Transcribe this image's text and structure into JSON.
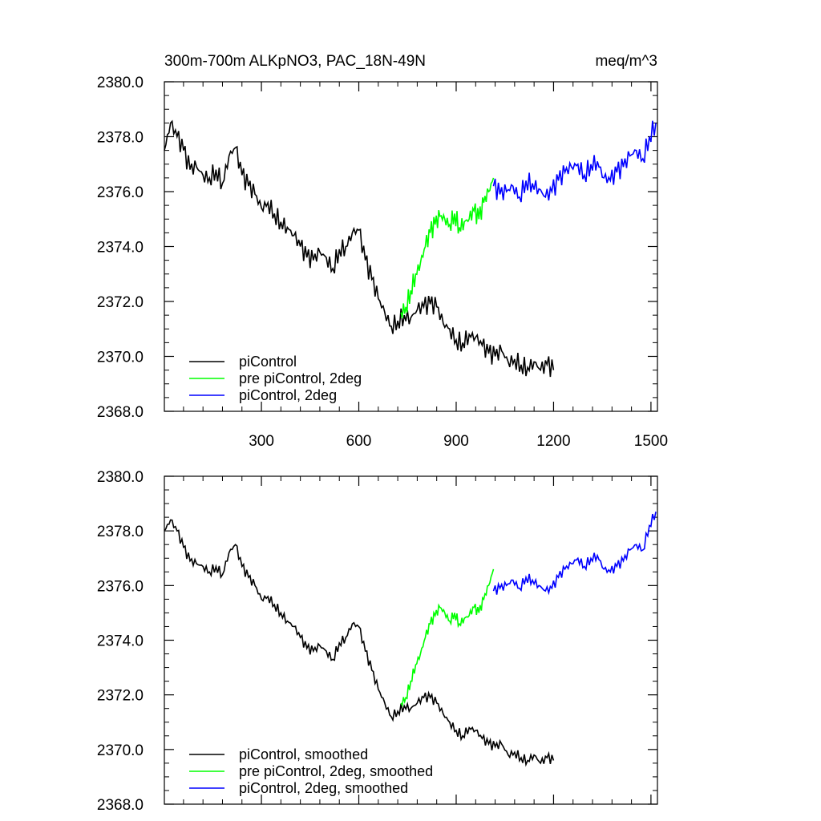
{
  "chart_data": [
    {
      "type": "line",
      "title": "300m-700m ALKpNO3, PAC_18N-49N",
      "units": "meq/m^3",
      "xlim": [
        1,
        1520
      ],
      "ylim": [
        2368.0,
        2380.0
      ],
      "x_ticks": [
        300,
        600,
        900,
        1200,
        1500
      ],
      "y_ticks": [
        "2368.0",
        "2370.0",
        "2372.0",
        "2374.0",
        "2376.0",
        "2378.0",
        "2380.0"
      ],
      "legend_position": "bottom-left",
      "series": [
        {
          "name": "piControl",
          "color": "#000000",
          "x": [
            1,
            20,
            40,
            60,
            80,
            100,
            120,
            140,
            160,
            180,
            200,
            220,
            240,
            260,
            280,
            300,
            320,
            340,
            360,
            380,
            400,
            420,
            440,
            460,
            480,
            500,
            520,
            540,
            560,
            580,
            600,
            620,
            640,
            660,
            680,
            700,
            720,
            740,
            760,
            780,
            800,
            820,
            840,
            860,
            880,
            900,
            920,
            940,
            960,
            980,
            1000,
            1020,
            1040,
            1060,
            1080,
            1100,
            1120,
            1140,
            1160,
            1180,
            1200
          ],
          "y": [
            2377.5,
            2378.5,
            2378.0,
            2377.5,
            2376.8,
            2376.9,
            2376.6,
            2376.5,
            2376.8,
            2376.3,
            2377.3,
            2377.6,
            2376.6,
            2376.2,
            2375.9,
            2375.4,
            2375.6,
            2375.2,
            2374.9,
            2374.7,
            2374.4,
            2374.0,
            2373.6,
            2373.5,
            2373.8,
            2373.6,
            2373.2,
            2373.9,
            2374.0,
            2374.5,
            2374.6,
            2373.5,
            2372.8,
            2372.1,
            2371.6,
            2371.1,
            2371.3,
            2371.5,
            2371.4,
            2371.7,
            2371.8,
            2371.9,
            2371.8,
            2371.2,
            2371.0,
            2370.6,
            2370.5,
            2370.8,
            2370.7,
            2370.4,
            2370.1,
            2370.0,
            2370.2,
            2369.8,
            2369.9,
            2369.7,
            2369.6,
            2369.8,
            2369.5,
            2369.7,
            2369.5
          ]
        },
        {
          "name": "pre piControl, 2deg",
          "color": "#00ff00",
          "x": [
            730,
            745,
            760,
            775,
            790,
            805,
            820,
            835,
            850,
            865,
            880,
            895,
            910,
            925,
            940,
            955,
            970,
            985,
            1000,
            1015
          ],
          "y": [
            2371.6,
            2371.8,
            2372.4,
            2373.0,
            2373.4,
            2374.0,
            2374.5,
            2374.8,
            2375.1,
            2375.0,
            2374.8,
            2375.2,
            2374.7,
            2374.9,
            2375.0,
            2375.3,
            2375.0,
            2375.6,
            2376.0,
            2376.5
          ]
        },
        {
          "name": "piControl, 2deg",
          "color": "#0000ff",
          "x": [
            1015,
            1035,
            1055,
            1075,
            1095,
            1115,
            1135,
            1155,
            1175,
            1195,
            1215,
            1235,
            1255,
            1275,
            1295,
            1315,
            1335,
            1355,
            1375,
            1395,
            1415,
            1435,
            1455,
            1475,
            1495,
            1515
          ],
          "y": [
            2376.2,
            2375.9,
            2376.0,
            2376.2,
            2375.8,
            2376.4,
            2376.3,
            2376.1,
            2375.8,
            2376.0,
            2376.4,
            2376.7,
            2376.9,
            2377.0,
            2376.6,
            2377.0,
            2377.1,
            2376.5,
            2376.4,
            2376.7,
            2376.9,
            2377.3,
            2377.5,
            2377.2,
            2378.0,
            2378.5
          ]
        }
      ]
    },
    {
      "type": "line",
      "xlim": [
        1,
        1520
      ],
      "ylim": [
        2368.0,
        2380.0
      ],
      "y_ticks": [
        "2368.0",
        "2370.0",
        "2372.0",
        "2374.0",
        "2376.0",
        "2378.0",
        "2380.0"
      ],
      "legend_position": "bottom-left",
      "series": [
        {
          "name": "piControl, smoothed",
          "color": "#000000",
          "x": [
            1,
            20,
            40,
            60,
            80,
            100,
            120,
            140,
            160,
            180,
            200,
            220,
            240,
            260,
            280,
            300,
            320,
            340,
            360,
            380,
            400,
            420,
            440,
            460,
            480,
            500,
            520,
            540,
            560,
            580,
            600,
            620,
            640,
            660,
            680,
            700,
            720,
            740,
            760,
            780,
            800,
            820,
            840,
            860,
            880,
            900,
            920,
            940,
            960,
            980,
            1000,
            1020,
            1040,
            1060,
            1080,
            1100,
            1120,
            1140,
            1160,
            1180,
            1200
          ],
          "y": [
            2378.0,
            2378.4,
            2378.0,
            2377.4,
            2376.9,
            2376.8,
            2376.7,
            2376.5,
            2376.7,
            2376.4,
            2377.2,
            2377.5,
            2376.7,
            2376.3,
            2376.0,
            2375.5,
            2375.6,
            2375.3,
            2375.0,
            2374.7,
            2374.5,
            2374.1,
            2373.7,
            2373.6,
            2373.8,
            2373.6,
            2373.3,
            2373.9,
            2374.1,
            2374.6,
            2374.5,
            2373.6,
            2372.9,
            2372.2,
            2371.7,
            2371.2,
            2371.4,
            2371.6,
            2371.5,
            2371.7,
            2371.9,
            2371.9,
            2371.7,
            2371.3,
            2371.0,
            2370.7,
            2370.5,
            2370.8,
            2370.7,
            2370.4,
            2370.2,
            2370.1,
            2370.2,
            2369.8,
            2369.9,
            2369.7,
            2369.6,
            2369.8,
            2369.5,
            2369.7,
            2369.6
          ]
        },
        {
          "name": "pre piControl, 2deg, smoothed",
          "color": "#00ff00",
          "x": [
            730,
            745,
            760,
            775,
            790,
            805,
            820,
            835,
            850,
            865,
            880,
            895,
            910,
            925,
            940,
            955,
            970,
            985,
            1000,
            1015
          ],
          "y": [
            2371.7,
            2371.9,
            2372.5,
            2373.1,
            2373.5,
            2374.1,
            2374.6,
            2374.9,
            2375.2,
            2375.0,
            2374.7,
            2375.0,
            2374.6,
            2374.8,
            2374.9,
            2375.2,
            2375.0,
            2375.5,
            2376.0,
            2376.6
          ]
        },
        {
          "name": "piControl, 2deg, smoothed",
          "color": "#0000ff",
          "x": [
            1015,
            1035,
            1055,
            1075,
            1095,
            1115,
            1135,
            1155,
            1175,
            1195,
            1215,
            1235,
            1255,
            1275,
            1295,
            1315,
            1335,
            1355,
            1375,
            1395,
            1415,
            1435,
            1455,
            1475,
            1495,
            1515
          ],
          "y": [
            2375.8,
            2375.9,
            2376.0,
            2376.2,
            2375.9,
            2376.3,
            2376.2,
            2376.0,
            2375.8,
            2375.9,
            2376.3,
            2376.6,
            2376.8,
            2377.0,
            2376.7,
            2377.0,
            2377.1,
            2376.6,
            2376.5,
            2376.7,
            2376.9,
            2377.3,
            2377.5,
            2377.3,
            2378.2,
            2378.7
          ]
        }
      ]
    }
  ]
}
